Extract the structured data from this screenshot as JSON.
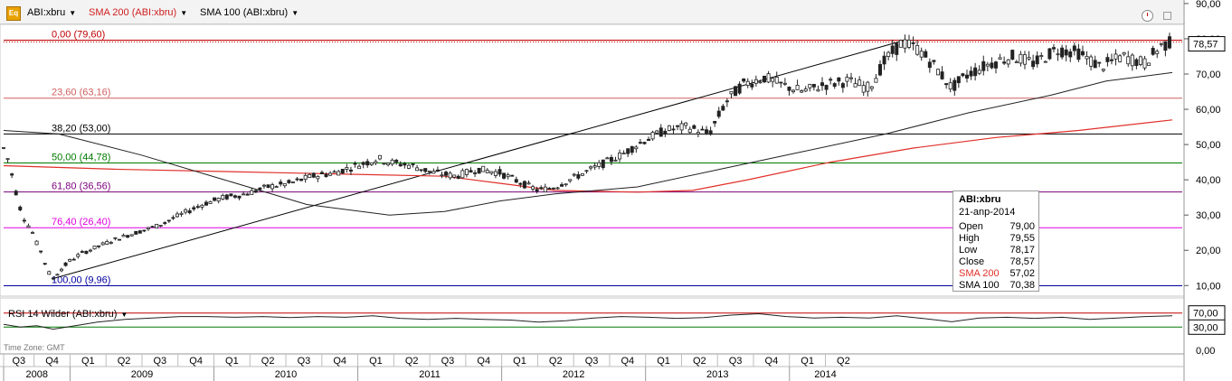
{
  "header": {
    "symbol": "ABI:xbru",
    "sma200_label": "SMA 200 (ABI:xbru)",
    "sma100_label": "SMA 100 (ABI:xbru)",
    "logo_text": "Eq",
    "dropdown_icon": "triangle-down-icon",
    "clock_icon": "clock-icon",
    "window_icon": "restore-window-icon"
  },
  "colors": {
    "price": "#222222",
    "sma200": "#e0302a",
    "sma100": "#222222",
    "fib_0": "#c00000",
    "fib_23_6": "#d06060",
    "fib_38_2": "#000000",
    "fib_50": "#007a00",
    "fib_61_8": "#7a007a",
    "fib_76_4": "#e000e0",
    "fib_100": "#0000a0",
    "trend": "#000000"
  },
  "fibonacci": [
    {
      "label": "0,00 (79,60)",
      "value": 79.6,
      "color_key": "fib_0"
    },
    {
      "label": "23,60 (63,16)",
      "value": 63.16,
      "color_key": "fib_23_6"
    },
    {
      "label": "38,20 (53,00)",
      "value": 53.0,
      "color_key": "fib_38_2"
    },
    {
      "label": "50,00 (44,78)",
      "value": 44.78,
      "color_key": "fib_50"
    },
    {
      "label": "61,80 (36,56)",
      "value": 36.56,
      "color_key": "fib_61_8"
    },
    {
      "label": "76,40 (26,40)",
      "value": 26.4,
      "color_key": "fib_76_4"
    },
    {
      "label": "100,00 (9,96)",
      "value": 9.96,
      "color_key": "fib_100"
    }
  ],
  "price_axis": {
    "ticks": [
      "90,00",
      "80,00",
      "70,00",
      "60,00",
      "50,00",
      "40,00",
      "30,00",
      "20,00",
      "10,00"
    ],
    "tick_values": [
      90,
      80,
      70,
      60,
      50,
      40,
      30,
      20,
      10
    ],
    "last_price_label": "78,57",
    "last_price": 78.57
  },
  "infobox": {
    "title": "ABI:xbru",
    "date": "21-anp-2014",
    "rows": [
      {
        "key": "Open",
        "value": "79,00"
      },
      {
        "key": "High",
        "value": "79,55"
      },
      {
        "key": "Low",
        "value": "78,17"
      },
      {
        "key": "Close",
        "value": "78,57"
      },
      {
        "key": "SMA 200",
        "value": "57,02"
      },
      {
        "key": "SMA 100",
        "value": "70,38"
      }
    ]
  },
  "rsi": {
    "label": "RSI 14 Wilder (ABI:xbru)",
    "ticks": [
      "70,00",
      "30,00",
      "0,00"
    ],
    "tick_values": [
      70,
      30,
      0
    ]
  },
  "time_zone": "Time Zone: GMT",
  "time_axis": {
    "quarters": [
      "Q3",
      "Q4",
      "Q1",
      "Q2",
      "Q3",
      "Q4",
      "Q1",
      "Q2",
      "Q3",
      "Q4",
      "Q1",
      "Q2",
      "Q3",
      "Q4",
      "Q1",
      "Q2",
      "Q3",
      "Q4",
      "Q1",
      "Q2",
      "Q3",
      "Q4",
      "Q1",
      "Q2"
    ],
    "years": [
      "2008",
      "2009",
      "2010",
      "2011",
      "2012",
      "2013",
      "2014"
    ]
  },
  "chart_data": {
    "type": "line",
    "title": "ABI:xbru",
    "ylim": [
      7,
      91
    ],
    "x_unit": "weeks since Jul 2008",
    "price_path": [
      [
        0,
        49
      ],
      [
        2,
        45
      ],
      [
        4,
        38
      ],
      [
        6,
        32
      ],
      [
        8,
        28
      ],
      [
        10,
        26
      ],
      [
        12,
        22
      ],
      [
        14,
        19
      ],
      [
        16,
        14
      ],
      [
        18,
        12
      ],
      [
        20,
        14
      ],
      [
        24,
        17
      ],
      [
        28,
        19
      ],
      [
        34,
        21
      ],
      [
        40,
        23
      ],
      [
        48,
        25
      ],
      [
        56,
        27
      ],
      [
        64,
        30
      ],
      [
        72,
        33
      ],
      [
        80,
        35
      ],
      [
        88,
        36
      ],
      [
        96,
        38
      ],
      [
        104,
        39
      ],
      [
        112,
        41
      ],
      [
        120,
        42
      ],
      [
        128,
        44
      ],
      [
        136,
        46
      ],
      [
        140,
        45
      ],
      [
        148,
        44
      ],
      [
        156,
        42
      ],
      [
        164,
        41
      ],
      [
        172,
        43
      ],
      [
        180,
        42
      ],
      [
        188,
        39
      ],
      [
        194,
        37
      ],
      [
        200,
        38
      ],
      [
        208,
        41
      ],
      [
        216,
        44
      ],
      [
        224,
        47
      ],
      [
        232,
        51
      ],
      [
        240,
        54
      ],
      [
        248,
        55
      ],
      [
        256,
        53
      ],
      [
        262,
        62
      ],
      [
        268,
        67
      ],
      [
        276,
        69
      ],
      [
        282,
        67
      ],
      [
        290,
        65
      ],
      [
        298,
        67
      ],
      [
        306,
        68
      ],
      [
        314,
        66
      ],
      [
        320,
        74
      ],
      [
        326,
        79
      ],
      [
        332,
        77
      ],
      [
        338,
        72
      ],
      [
        344,
        66
      ],
      [
        350,
        70
      ],
      [
        358,
        73
      ],
      [
        366,
        75
      ],
      [
        374,
        73
      ],
      [
        382,
        77
      ],
      [
        390,
        76
      ],
      [
        398,
        72
      ],
      [
        406,
        75
      ],
      [
        414,
        73
      ],
      [
        420,
        78
      ],
      [
        424,
        79
      ]
    ],
    "sma200_path": [
      [
        0,
        44
      ],
      [
        40,
        43
      ],
      [
        100,
        42
      ],
      [
        160,
        41
      ],
      [
        180,
        39
      ],
      [
        200,
        37
      ],
      [
        230,
        36.5
      ],
      [
        250,
        37
      ],
      [
        270,
        40
      ],
      [
        300,
        45
      ],
      [
        330,
        49
      ],
      [
        360,
        52
      ],
      [
        390,
        54
      ],
      [
        424,
        57
      ]
    ],
    "sma100_path": [
      [
        0,
        54
      ],
      [
        20,
        53
      ],
      [
        50,
        47
      ],
      [
        80,
        40
      ],
      [
        110,
        33
      ],
      [
        140,
        30
      ],
      [
        160,
        31
      ],
      [
        180,
        34
      ],
      [
        200,
        36
      ],
      [
        230,
        38
      ],
      [
        260,
        43
      ],
      [
        290,
        48
      ],
      [
        320,
        53
      ],
      [
        350,
        59
      ],
      [
        380,
        64
      ],
      [
        400,
        68
      ],
      [
        424,
        70.4
      ]
    ],
    "trendline_upper": [
      [
        18,
        12
      ],
      [
        327,
        79.6
      ]
    ],
    "rsi_path": [
      [
        0,
        38
      ],
      [
        6,
        30
      ],
      [
        12,
        34
      ],
      [
        18,
        24
      ],
      [
        26,
        34
      ],
      [
        34,
        44
      ],
      [
        44,
        52
      ],
      [
        54,
        56
      ],
      [
        64,
        60
      ],
      [
        74,
        60
      ],
      [
        84,
        58
      ],
      [
        94,
        60
      ],
      [
        104,
        57
      ],
      [
        114,
        60
      ],
      [
        124,
        58
      ],
      [
        134,
        62
      ],
      [
        144,
        55
      ],
      [
        154,
        52
      ],
      [
        164,
        55
      ],
      [
        174,
        52
      ],
      [
        184,
        50
      ],
      [
        194,
        44
      ],
      [
        204,
        48
      ],
      [
        214,
        56
      ],
      [
        224,
        60
      ],
      [
        234,
        58
      ],
      [
        244,
        55
      ],
      [
        254,
        57
      ],
      [
        264,
        64
      ],
      [
        274,
        68
      ],
      [
        284,
        60
      ],
      [
        294,
        56
      ],
      [
        304,
        58
      ],
      [
        314,
        56
      ],
      [
        324,
        62
      ],
      [
        334,
        54
      ],
      [
        344,
        45
      ],
      [
        354,
        56
      ],
      [
        364,
        58
      ],
      [
        374,
        55
      ],
      [
        384,
        58
      ],
      [
        394,
        52
      ],
      [
        404,
        56
      ],
      [
        414,
        60
      ],
      [
        424,
        62
      ]
    ],
    "x_max": 424
  }
}
